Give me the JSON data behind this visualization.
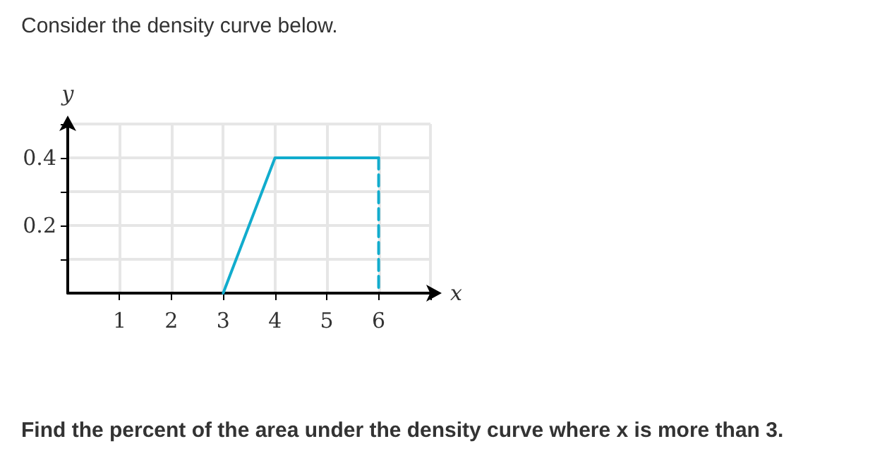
{
  "chart_data": {
    "type": "line",
    "title": "Consider the density curve below.",
    "xlabel": "x",
    "ylabel": "y",
    "xlim": [
      0,
      7
    ],
    "xticks": [
      1,
      2,
      3,
      4,
      5,
      6,
      {
        "value": 7,
        "label": null
      }
    ],
    "ylim": [
      0,
      0.5
    ],
    "yticks": [
      {
        "value": 0.1,
        "label": null
      },
      0.2,
      {
        "value": 0.3,
        "label": null
      },
      0.4,
      {
        "value": 0.5,
        "label": null
      }
    ],
    "grid": true,
    "marker": "none",
    "series": [
      {
        "color": "#11accd",
        "x": [
          3,
          4,
          6
        ],
        "values": [
          0,
          0.4,
          0.4
        ],
        "line_style": "solid"
      },
      {
        "color": "#11accd",
        "x": [
          6,
          6
        ],
        "values": [
          0.4,
          0
        ],
        "line_style": "dashed"
      }
    ],
    "annotations": [
      "Find the percent of the area under the density curve where x is more than 3."
    ]
  }
}
